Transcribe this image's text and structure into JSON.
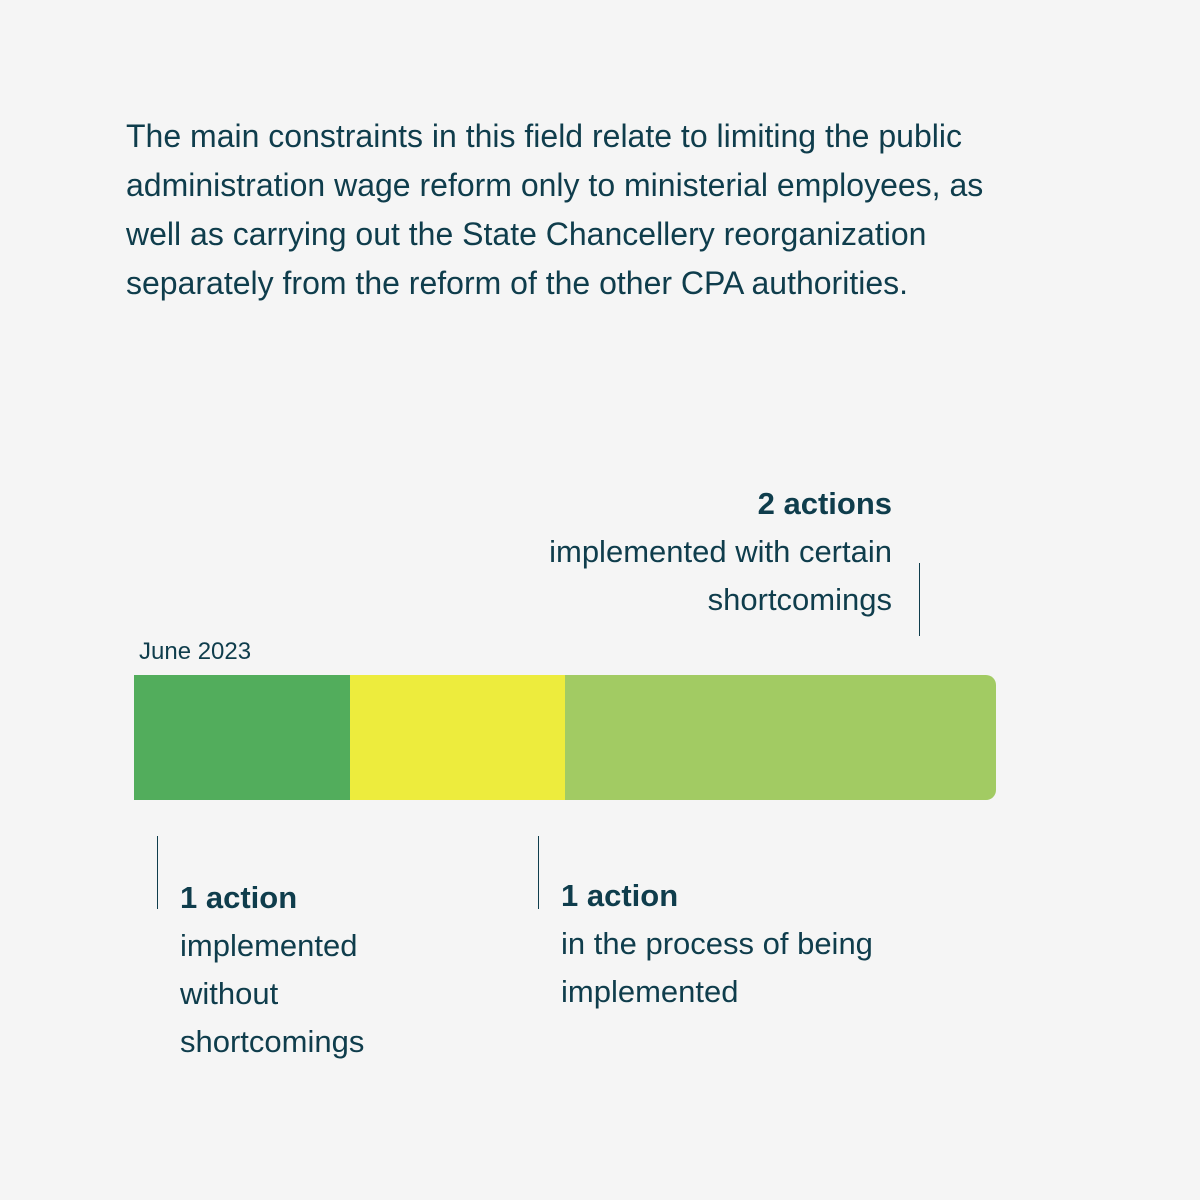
{
  "intro_text": "The main constraints in this field relate to limiting the public administration wage reform only to ministerial employees, as well as carrying out the State Chancellery reorganization separately from the reform of the other CPA authorities.",
  "chart_data": {
    "type": "bar",
    "orientation": "horizontal-stacked",
    "period_label": "June 2023",
    "total": 4,
    "segments": [
      {
        "count_label": "1 action",
        "desc_label": "implemented without shortcomings",
        "value": 1,
        "color": "#52ad5c"
      },
      {
        "count_label": "1 action",
        "desc_label": "in the process of being implemented",
        "value": 1,
        "color": "#edec3d"
      },
      {
        "count_label": "2 actions",
        "desc_label": "implemented with certain shortcomings",
        "value": 2,
        "color": "#a2cb63"
      }
    ]
  }
}
